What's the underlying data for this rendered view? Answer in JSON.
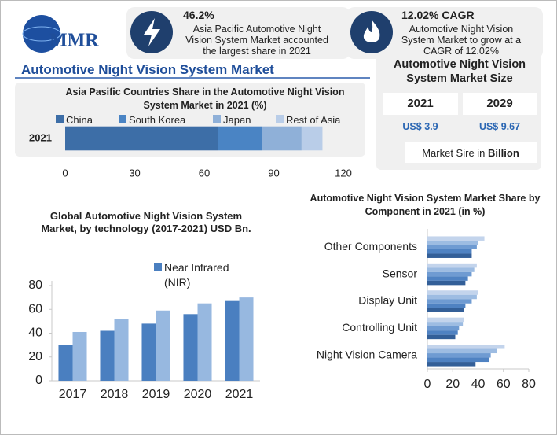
{
  "logo": "MMR",
  "header": {
    "stat_1": {
      "value": "46.2%",
      "text": "Asia Pacific Automotive Night Vision System Market accounted the largest share in 2021"
    },
    "stat_2": {
      "value": "12.02% CAGR",
      "text": "Automotive Night Vision System Market to grow at a CAGR of 12.02%"
    },
    "title": "Automotive Night Vision System Market"
  },
  "market_size": {
    "title": "Automotive Night Vision System Market Size",
    "years": [
      "2021",
      "2029"
    ],
    "values": [
      "US$ 3.9",
      "US$ 9.67"
    ],
    "note": "Market Sire in",
    "note_unit": "Billion"
  },
  "chart_data": [
    {
      "type": "bar",
      "orientation": "horizontal",
      "stacked": true,
      "title": "Asia Pasific Countries Share in the Automotive Night Vision System Market in 2021 (%)",
      "categories": [
        "2021"
      ],
      "series": [
        {
          "name": "China",
          "color": "#3d6ea7",
          "values": [
            66
          ]
        },
        {
          "name": "South Korea",
          "color": "#4a84c4",
          "values": [
            19
          ]
        },
        {
          "name": "Japan",
          "color": "#8fb0d8",
          "values": [
            17
          ]
        },
        {
          "name": "Rest of Asia",
          "color": "#b9cde8",
          "values": [
            9
          ]
        }
      ],
      "xlim": [
        0,
        120
      ],
      "xticks": [
        0,
        30,
        60,
        90,
        120
      ],
      "legend": "top"
    },
    {
      "type": "bar",
      "orientation": "vertical",
      "stacked": false,
      "title": "Global Automotive Night Vision System Market, by technology (2017-2021) USD Bn.",
      "categories": [
        "2017",
        "2018",
        "2019",
        "2020",
        "2021"
      ],
      "series": [
        {
          "name": "Near Infrared (NIR)",
          "color": "#4a7fc0",
          "values": [
            30,
            42,
            48,
            56,
            67
          ]
        },
        {
          "color": "#97b8e0",
          "values": [
            41,
            52,
            59,
            65,
            70
          ]
        }
      ],
      "ylim": [
        0,
        80
      ],
      "yticks": [
        0,
        20,
        40,
        60,
        80
      ],
      "legend": "top"
    },
    {
      "type": "bar",
      "orientation": "horizontal",
      "stacked": false,
      "title": "Automotive Night Vision System Market Share by Component in 2021 (in %)",
      "categories": [
        "Other Components",
        "Sensor",
        "Display Unit",
        "Controlling Unit",
        "Night Vision Camera"
      ],
      "series": [
        {
          "color": "#c3d4ec",
          "values": [
            45,
            39,
            40,
            29,
            61
          ]
        },
        {
          "color": "#9dbce2",
          "values": [
            40,
            37,
            39,
            28,
            55
          ]
        },
        {
          "color": "#6f9bd2",
          "values": [
            39,
            35,
            35,
            25,
            50
          ]
        },
        {
          "color": "#4f82c2",
          "values": [
            35,
            32,
            30,
            24,
            49
          ]
        },
        {
          "color": "#335f98",
          "values": [
            35,
            30,
            29,
            22,
            38
          ]
        }
      ],
      "xlim": [
        0,
        80
      ],
      "xticks": [
        0,
        20,
        40,
        60,
        80
      ]
    }
  ]
}
